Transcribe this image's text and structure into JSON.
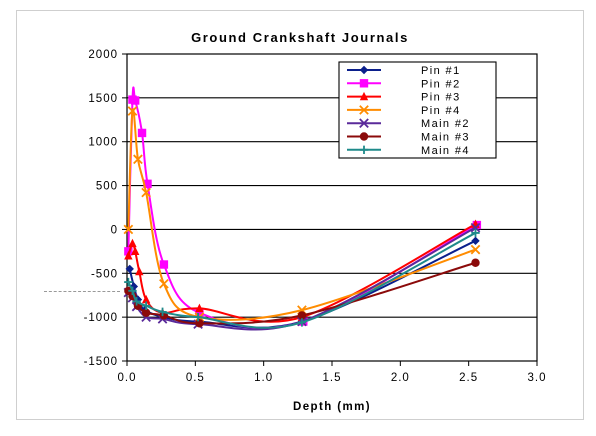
{
  "chart_data": {
    "type": "line",
    "title": "Ground Crankshaft Journals",
    "xlabel": "Depth (mm)",
    "ylabel": "",
    "xlim": [
      0.0,
      3.0
    ],
    "ylim": [
      -1500,
      2000
    ],
    "xticks": [
      "0.0",
      "0.5",
      "1.0",
      "1.5",
      "2.0",
      "2.5",
      "3.0"
    ],
    "yticks": [
      "2000",
      "1500",
      "1000",
      "500",
      "0",
      "-500",
      "-1000",
      "-1500"
    ],
    "grid": "horizontal",
    "legend_position": "top-right",
    "series": [
      {
        "name": "Pin #1",
        "color": "#0b1f8c",
        "marker": "diamond",
        "x": [
          0.02,
          0.05,
          0.08,
          0.13,
          0.27,
          0.52,
          1.28,
          2.55
        ],
        "y": [
          -450,
          -650,
          -800,
          -920,
          -1000,
          -1050,
          -1050,
          -130
        ]
      },
      {
        "name": "Pin #2",
        "color": "#ff00ff",
        "marker": "square",
        "x": [
          0.01,
          0.04,
          0.06,
          0.11,
          0.15,
          0.27,
          0.53,
          1.29,
          2.56
        ],
        "y": [
          -250,
          1480,
          1470,
          1100,
          520,
          -400,
          -950,
          -1050,
          50
        ]
      },
      {
        "name": "Pin #3",
        "color": "#ff0000",
        "marker": "triangle",
        "x": [
          0.01,
          0.04,
          0.06,
          0.09,
          0.14,
          0.26,
          0.53,
          1.28,
          2.55
        ],
        "y": [
          -300,
          -160,
          -250,
          -480,
          -800,
          -950,
          -900,
          -1000,
          60
        ]
      },
      {
        "name": "Pin #4",
        "color": "#ff8c00",
        "marker": "x",
        "x": [
          0.01,
          0.04,
          0.08,
          0.14,
          0.27,
          0.53,
          1.28,
          2.55
        ],
        "y": [
          0,
          1350,
          800,
          420,
          -620,
          -1000,
          -920,
          -230
        ]
      },
      {
        "name": "Main #2",
        "color": "#5a2a9a",
        "marker": "x",
        "x": [
          0.01,
          0.04,
          0.07,
          0.14,
          0.26,
          0.52,
          1.28,
          2.55
        ],
        "y": [
          -720,
          -780,
          -880,
          -1000,
          -1020,
          -1080,
          -1050,
          20
        ]
      },
      {
        "name": "Main #3",
        "color": "#8b0a0a",
        "marker": "circle",
        "x": [
          0.01,
          0.04,
          0.08,
          0.14,
          0.27,
          0.53,
          1.28,
          2.55
        ],
        "y": [
          -700,
          -760,
          -870,
          -950,
          -980,
          -1070,
          -980,
          -380
        ]
      },
      {
        "name": "Main #4",
        "color": "#1f8a8a",
        "marker": "plus",
        "x": [
          0.01,
          0.04,
          0.07,
          0.14,
          0.26,
          0.52,
          1.28,
          2.55
        ],
        "y": [
          -600,
          -700,
          -820,
          -870,
          -940,
          -1000,
          -1060,
          -40
        ]
      }
    ]
  }
}
